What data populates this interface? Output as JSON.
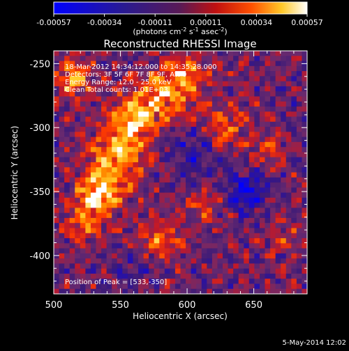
{
  "chart_data": {
    "type": "heatmap",
    "title": "Reconstructed RHESSI Image",
    "xlabel": "Heliocentric X (arcsec)",
    "ylabel": "Heliocentric Y (arcsec)",
    "xlim": [
      500,
      690
    ],
    "ylim": [
      -430,
      -240
    ],
    "x_ticks": [
      "500",
      "550",
      "600",
      "650"
    ],
    "y_ticks": [
      "-250",
      "-300",
      "-350",
      "-400"
    ],
    "colorbar": {
      "ticks": [
        "-0.00057",
        "-0.00034",
        "-0.00011",
        "0.00011",
        "0.00034",
        "0.00057"
      ],
      "range": [
        -0.00057,
        0.00057
      ],
      "units_line": "(photons cm",
      "units_sup1": "-2",
      "units_mid": " s",
      "units_sup2": "-1",
      "units_mid2": " asec",
      "units_sup3": "-2",
      "units_end": ")"
    },
    "colormap": [
      "#0000ff",
      "#3c1a78",
      "#6a2a6e",
      "#c0182a",
      "#ff3c00",
      "#ff8c00",
      "#ffd230",
      "#ffffff"
    ],
    "annotations": [
      "18-Mar-2012 14:34:12.000 to 14:35:28.000",
      "Detectors: 3F 5F 6F 7F 8F 9F, Att 0",
      "Energy Range: 12.0 - 25.0 keV",
      "Clean     Total counts: 1.01E+03"
    ],
    "peak_label": "Position of Peak = [533,-350]",
    "peak": [
      533,
      -350
    ],
    "sources": [
      {
        "x": 535,
        "y": -350,
        "amp": 1.0,
        "s": 12
      },
      {
        "x": 548,
        "y": -320,
        "amp": 0.9,
        "s": 14
      },
      {
        "x": 560,
        "y": -292,
        "amp": 0.85,
        "s": 13
      },
      {
        "x": 585,
        "y": -272,
        "amp": 0.8,
        "s": 14
      },
      {
        "x": 515,
        "y": -262,
        "amp": 0.75,
        "s": 10
      },
      {
        "x": 603,
        "y": -258,
        "amp": 0.55,
        "s": 10
      },
      {
        "x": 627,
        "y": -300,
        "amp": 0.6,
        "s": 12
      },
      {
        "x": 522,
        "y": -375,
        "amp": 0.5,
        "s": 12
      },
      {
        "x": 580,
        "y": -388,
        "amp": 0.55,
        "s": 12
      },
      {
        "x": 612,
        "y": -360,
        "amp": 0.4,
        "s": 10
      },
      {
        "x": 662,
        "y": -318,
        "amp": 0.4,
        "s": 9
      },
      {
        "x": 672,
        "y": -385,
        "amp": 0.35,
        "s": 9
      },
      {
        "x": 645,
        "y": -350,
        "amp": -0.7,
        "s": 10
      },
      {
        "x": 605,
        "y": -320,
        "amp": -0.4,
        "s": 14
      },
      {
        "x": 560,
        "y": -410,
        "amp": -0.3,
        "s": 10
      }
    ]
  },
  "footer": {
    "date": "5-May-2014 12:02"
  }
}
